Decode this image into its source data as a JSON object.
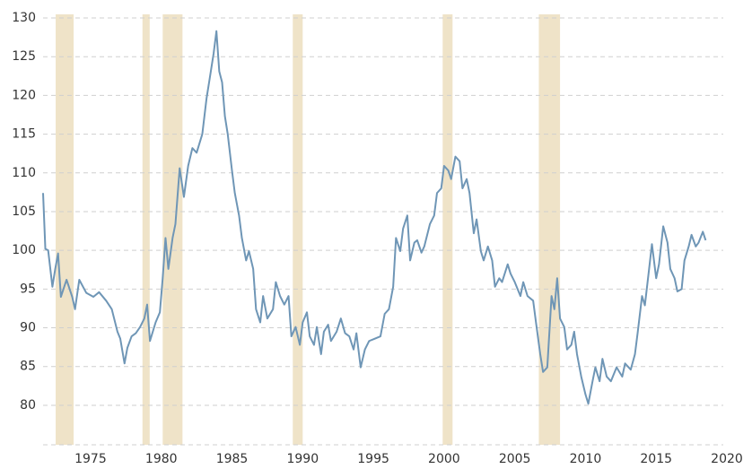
{
  "chart_data": {
    "type": "line",
    "x": [
      1971.64,
      1971.8,
      1972.0,
      1972.3,
      1972.5,
      1972.7,
      1972.9,
      1973.3,
      1973.7,
      1973.9,
      1974.2,
      1974.7,
      1975.2,
      1975.6,
      1976.1,
      1976.5,
      1976.9,
      1977.1,
      1977.4,
      1977.6,
      1977.9,
      1978.2,
      1978.5,
      1978.8,
      1979.0,
      1979.2,
      1979.4,
      1979.6,
      1979.9,
      1980.1,
      1980.3,
      1980.5,
      1980.8,
      1981.0,
      1981.3,
      1981.6,
      1981.9,
      1982.2,
      1982.5,
      1982.9,
      1983.2,
      1983.4,
      1983.7,
      1983.9,
      1984.1,
      1984.3,
      1984.5,
      1984.7,
      1985.0,
      1985.2,
      1985.5,
      1985.7,
      1986.0,
      1986.2,
      1986.5,
      1986.7,
      1987.0,
      1987.2,
      1987.5,
      1987.9,
      1988.1,
      1988.4,
      1988.7,
      1989.0,
      1989.2,
      1989.5,
      1989.8,
      1990.0,
      1990.3,
      1990.5,
      1990.8,
      1991.0,
      1991.3,
      1991.5,
      1991.8,
      1992.0,
      1992.4,
      1992.7,
      1993.0,
      1993.3,
      1993.6,
      1993.8,
      1994.1,
      1994.4,
      1994.7,
      1995.1,
      1995.5,
      1995.8,
      1996.1,
      1996.4,
      1996.6,
      1996.9,
      1997.1,
      1997.4,
      1997.6,
      1997.9,
      1998.1,
      1998.4,
      1998.6,
      1999.0,
      1999.3,
      1999.5,
      1999.8,
      2000.0,
      2000.3,
      2000.5,
      2000.8,
      2001.1,
      2001.3,
      2001.6,
      2001.8,
      2002.1,
      2002.3,
      2002.6,
      2002.8,
      2003.1,
      2003.4,
      2003.6,
      2003.9,
      2004.1,
      2004.5,
      2004.7,
      2005.0,
      2005.4,
      2005.6,
      2005.9,
      2006.3,
      2006.5,
      2006.8,
      2007.0,
      2007.3,
      2007.6,
      2007.8,
      2008.0,
      2008.2,
      2008.5,
      2008.7,
      2009.0,
      2009.2,
      2009.4,
      2009.7,
      2010.0,
      2010.2,
      2010.5,
      2010.7,
      2011.0,
      2011.2,
      2011.5,
      2011.8,
      2012.2,
      2012.6,
      2012.8,
      2013.2,
      2013.5,
      2013.7,
      2014.0,
      2014.2,
      2014.5,
      2014.7,
      2015.0,
      2015.2,
      2015.5,
      2015.8,
      2016.0,
      2016.3,
      2016.5,
      2016.8,
      2017.0,
      2017.3,
      2017.5,
      2017.8,
      2018.0,
      2018.3,
      2018.5
    ],
    "values": [
      107.4,
      100.2,
      100,
      95.3,
      97.6,
      99.6,
      94,
      96.2,
      94,
      92.4,
      96.2,
      94.5,
      94,
      94.6,
      93.5,
      92.4,
      89.5,
      88.6,
      85.4,
      87.4,
      88.9,
      89.3,
      90.1,
      91.2,
      93,
      88.3,
      89.5,
      90.7,
      92,
      96.4,
      101.6,
      97.6,
      101.6,
      103.4,
      110.6,
      106.9,
      110.9,
      113.2,
      112.6,
      115,
      119.6,
      121.9,
      125.4,
      128.3,
      123.1,
      121.7,
      117.3,
      115,
      110.3,
      107.4,
      104.5,
      101.6,
      98.7,
      99.9,
      97.6,
      92.4,
      90.7,
      94.1,
      91.2,
      92.4,
      95.9,
      94.1,
      93,
      94.1,
      88.9,
      90.1,
      87.8,
      90.7,
      92,
      88.9,
      87.8,
      90.1,
      86.6,
      89.5,
      90.4,
      88.3,
      89.5,
      91.2,
      89.3,
      88.9,
      87.2,
      89.3,
      84.9,
      87.2,
      88.3,
      88.6,
      88.9,
      91.8,
      92.4,
      95.3,
      101.6,
      99.9,
      102.8,
      104.5,
      98.7,
      101,
      101.3,
      99.7,
      100.5,
      103.4,
      104.5,
      107.4,
      108,
      110.9,
      110.3,
      109.2,
      112.1,
      111.5,
      108,
      109.2,
      107.4,
      102.2,
      104,
      99.9,
      98.7,
      100.5,
      98.7,
      95.3,
      96.4,
      95.9,
      98.2,
      97,
      95.9,
      94.1,
      95.9,
      94.1,
      93.5,
      90.7,
      86.6,
      84.3,
      84.9,
      94.1,
      92.4,
      96.4,
      91.2,
      90.1,
      87.2,
      87.8,
      89.5,
      86.6,
      83.7,
      81.4,
      80.2,
      83.1,
      84.9,
      83.1,
      86,
      83.7,
      83.1,
      84.9,
      83.7,
      85.4,
      84.6,
      86.6,
      89.5,
      94.1,
      92.9,
      97.6,
      100.8,
      96.4,
      98.2,
      103.1,
      101,
      97.6,
      96.4,
      94.7,
      95,
      98.7,
      100.5,
      102,
      100.5,
      101,
      102.4,
      101.3
    ],
    "color": "#6f96b6",
    "shaded_regions": [
      [
        1972.53,
        1973.8
      ],
      [
        1978.67,
        1979.18
      ],
      [
        1980.1,
        1981.5
      ],
      [
        1989.3,
        1990.0
      ],
      [
        1999.9,
        2000.6
      ],
      [
        2006.7,
        2008.2
      ]
    ],
    "shade_color": "#efe3c8",
    "xlim": [
      1971.64,
      2020
    ],
    "xticks": [
      1975,
      1980,
      1985,
      1990,
      1995,
      2000,
      2005,
      2010,
      2015,
      2020
    ],
    "ylim": [
      74.9,
      130
    ],
    "yticks": [
      80,
      85,
      90,
      95,
      100,
      105,
      110,
      115,
      120,
      125,
      130
    ],
    "grid": true
  }
}
